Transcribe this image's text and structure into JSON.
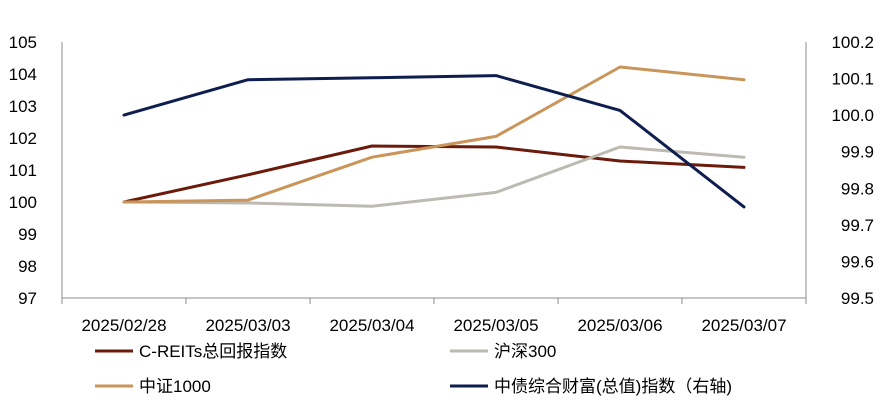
{
  "chart_data": {
    "type": "line",
    "categories": [
      "2025/02/28",
      "2025/03/03",
      "2025/03/04",
      "2025/03/05",
      "2025/03/06",
      "2025/03/07"
    ],
    "left_axis": {
      "ylim": [
        97,
        105
      ],
      "ticks": [
        "105",
        "104",
        "103",
        "102",
        "101",
        "100",
        "99",
        "98",
        "97"
      ]
    },
    "right_axis": {
      "ylim": [
        99.5,
        100.2
      ],
      "ticks": [
        "100.2",
        "100.1",
        "100.0",
        "99.9",
        "99.8",
        "99.7",
        "99.6",
        "99.5"
      ]
    },
    "series": [
      {
        "name": "C-REITs总回报指数",
        "axis": "left",
        "color": "#6b1a0c",
        "values": [
          100.0,
          100.85,
          101.75,
          101.72,
          101.28,
          101.08
        ]
      },
      {
        "name": "沪深300",
        "axis": "left",
        "color": "#bcbab1",
        "values": [
          100.0,
          99.97,
          99.87,
          100.3,
          101.72,
          101.4
        ]
      },
      {
        "name": "中证1000",
        "axis": "left",
        "color": "#c9955a",
        "values": [
          100.0,
          100.06,
          101.4,
          102.05,
          104.22,
          103.82
        ]
      },
      {
        "name": "中债综合财富(总值)指数（右轴)",
        "axis": "right",
        "color": "#0e1e4f",
        "values": [
          100.0,
          100.097,
          100.102,
          100.108,
          100.013,
          99.749
        ]
      }
    ],
    "grid": false,
    "legend_placement": "bottom"
  }
}
